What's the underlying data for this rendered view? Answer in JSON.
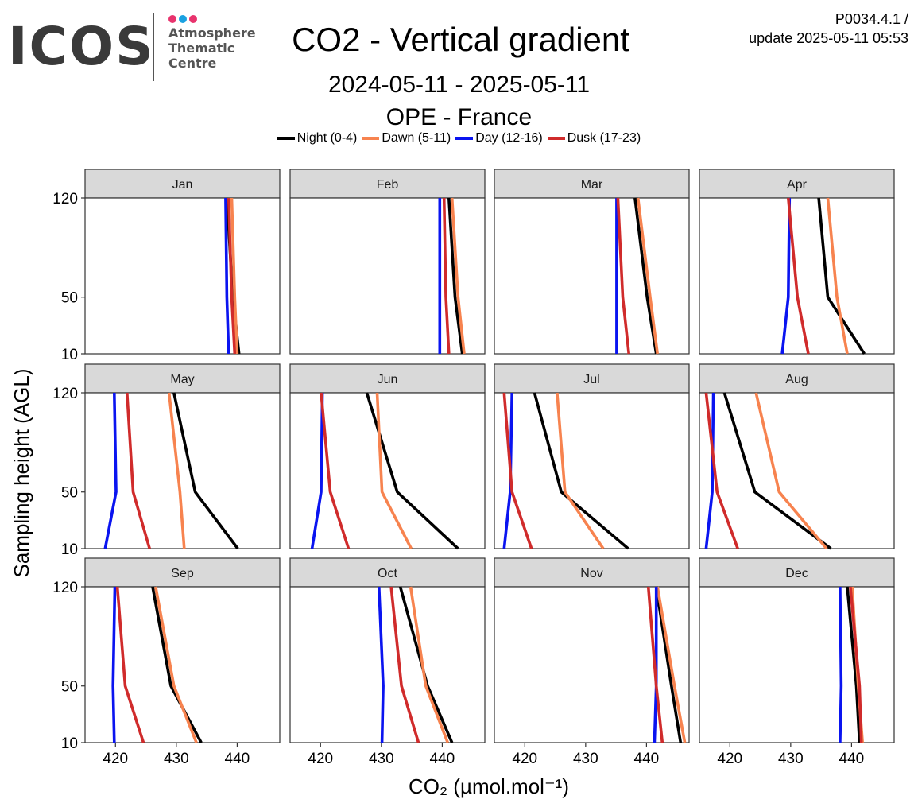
{
  "header": {
    "logo_word": "ICOS",
    "logo_lines": [
      "Atmosphere",
      "Thematic",
      "Centre"
    ],
    "logo_dot_colors": [
      "#e8336d",
      "#1aa1e1",
      "#e8336d"
    ],
    "title": "CO2 - Vertical gradient",
    "period": "2024-05-11 - 2025-05-11",
    "station": "OPE - France",
    "version_line1": "P0034.4.1 /",
    "version_line2": "update  2025-05-11 05:53"
  },
  "chart_data": {
    "type": "line",
    "facets": [
      "Jan",
      "Feb",
      "Mar",
      "Apr",
      "May",
      "Jun",
      "Jul",
      "Aug",
      "Sep",
      "Oct",
      "Nov",
      "Dec"
    ],
    "facet_rows": 3,
    "facet_cols": 4,
    "xlabel": "CO₂ (µmol.mol⁻¹)",
    "ylabel": "Sampling height (AGL)",
    "xlim": [
      415,
      447
    ],
    "ylim": [
      10,
      120
    ],
    "x_ticks": [
      420,
      430,
      440
    ],
    "y_ticks": [
      10,
      50,
      120
    ],
    "heights": [
      10,
      50,
      120
    ],
    "legend_position": "top",
    "series": [
      {
        "name": "Night (0-4)",
        "color": "#000000",
        "values": {
          "Jan": [
            440.3,
            439.3,
            438.3
          ],
          "Feb": [
            443.3,
            442.1,
            441.1
          ],
          "Mar": [
            441.6,
            440.1,
            438.1
          ],
          "Apr": [
            442.1,
            436.1,
            434.6
          ],
          "May": [
            440.1,
            433.1,
            429.6
          ],
          "Jun": [
            442.6,
            432.6,
            427.6
          ],
          "Jul": [
            437.0,
            426.0,
            421.6
          ],
          "Aug": [
            436.6,
            424.1,
            419.1
          ],
          "Sep": [
            434.1,
            429.1,
            426.1
          ],
          "Oct": [
            441.6,
            437.6,
            433.1
          ],
          "Nov": [
            445.6,
            444.1,
            441.6
          ],
          "Dec": [
            441.3,
            440.8,
            439.3
          ]
        }
      },
      {
        "name": "Dawn (5-11)",
        "color": "#f7834f",
        "values": {
          "Jan": [
            440.0,
            439.6,
            439.1
          ],
          "Feb": [
            443.6,
            442.6,
            441.6
          ],
          "Mar": [
            441.8,
            440.6,
            438.6
          ],
          "Apr": [
            439.3,
            437.6,
            436.1
          ],
          "May": [
            431.3,
            430.6,
            428.8
          ],
          "Jun": [
            434.9,
            430.1,
            429.3
          ],
          "Jul": [
            432.9,
            426.6,
            425.3
          ],
          "Aug": [
            435.9,
            428.1,
            424.3
          ],
          "Sep": [
            433.3,
            429.6,
            426.6
          ],
          "Oct": [
            440.9,
            437.3,
            434.8
          ],
          "Nov": [
            446.3,
            444.6,
            441.8
          ],
          "Dec": [
            441.8,
            441.1,
            440.1
          ]
        }
      },
      {
        "name": "Day (12-16)",
        "color": "#0a14f0",
        "values": {
          "Jan": [
            438.6,
            438.3,
            438.1
          ],
          "Feb": [
            439.6,
            439.6,
            439.6
          ],
          "Mar": [
            435.1,
            435.1,
            435.1
          ],
          "Apr": [
            428.6,
            429.6,
            429.8
          ],
          "May": [
            418.3,
            420.1,
            419.8
          ],
          "Jun": [
            418.6,
            420.1,
            420.3
          ],
          "Jul": [
            416.6,
            417.6,
            417.9
          ],
          "Aug": [
            416.1,
            417.1,
            417.3
          ],
          "Sep": [
            419.8,
            419.6,
            419.9
          ],
          "Oct": [
            430.1,
            430.3,
            429.6
          ],
          "Nov": [
            441.3,
            441.6,
            441.6
          ],
          "Dec": [
            438.1,
            438.3,
            438.1
          ]
        }
      },
      {
        "name": "Dusk (17-23)",
        "color": "#d02b2b",
        "values": {
          "Jan": [
            439.6,
            439.1,
            438.6
          ],
          "Feb": [
            441.1,
            440.6,
            440.3
          ],
          "Mar": [
            437.1,
            436.1,
            435.3
          ],
          "Apr": [
            432.9,
            431.1,
            429.6
          ],
          "May": [
            425.6,
            422.9,
            421.9
          ],
          "Jun": [
            424.6,
            421.6,
            420.1
          ],
          "Jul": [
            421.1,
            417.9,
            416.6
          ],
          "Aug": [
            421.3,
            417.9,
            416.1
          ],
          "Sep": [
            424.6,
            421.6,
            420.3
          ],
          "Oct": [
            436.1,
            433.3,
            431.6
          ],
          "Nov": [
            442.6,
            441.6,
            440.3
          ],
          "Dec": [
            441.6,
            441.3,
            439.8
          ]
        }
      }
    ]
  }
}
